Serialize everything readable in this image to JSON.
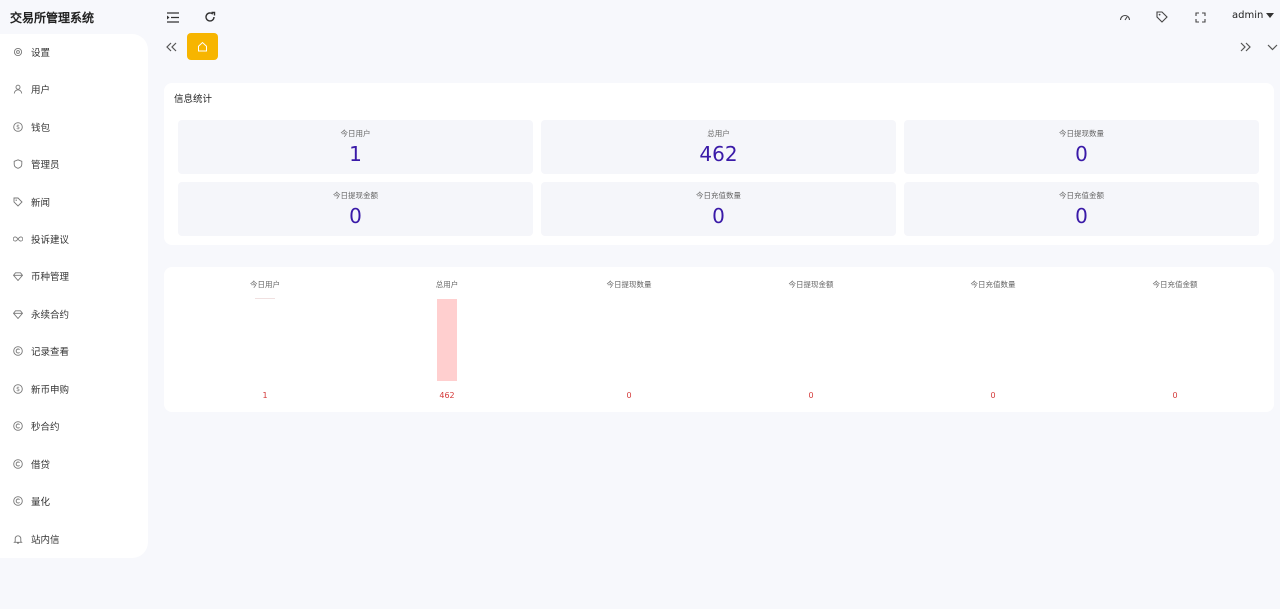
{
  "app": {
    "title": "交易所管理系统"
  },
  "header": {
    "menu_icon": "menu-fold-icon",
    "refresh_icon": "refresh-icon",
    "right_icons": [
      "dashboard-gauge-icon",
      "tag-icon",
      "fullscreen-icon"
    ],
    "user": "admin"
  },
  "sidebar": {
    "items": [
      {
        "label": "设置",
        "icon": "gear-icon"
      },
      {
        "label": "用户",
        "icon": "user-icon"
      },
      {
        "label": "钱包",
        "icon": "dollar-circle-icon"
      },
      {
        "label": "管理员",
        "icon": "shield-icon"
      },
      {
        "label": "新闻",
        "icon": "tag-icon"
      },
      {
        "label": "投诉建议",
        "icon": "infinity-icon"
      },
      {
        "label": "币种管理",
        "icon": "gem-icon"
      },
      {
        "label": "永续合约",
        "icon": "gem-icon"
      },
      {
        "label": "记录查看",
        "icon": "copyright-circle-icon"
      },
      {
        "label": "新币申购",
        "icon": "dollar-circle-icon"
      },
      {
        "label": "秒合约",
        "icon": "copyright-circle-icon"
      },
      {
        "label": "借贷",
        "icon": "copyright-circle-icon"
      },
      {
        "label": "量化",
        "icon": "copyright-circle-icon"
      },
      {
        "label": "站内信",
        "icon": "bell-icon"
      }
    ]
  },
  "tabs": {
    "home_icon": "home-icon"
  },
  "stats": {
    "title": "信息统计",
    "items": [
      {
        "label": "今日用户",
        "value": "1"
      },
      {
        "label": "总用户",
        "value": "462"
      },
      {
        "label": "今日提现数量",
        "value": "0"
      },
      {
        "label": "今日提现金额",
        "value": "0"
      },
      {
        "label": "今日充值数量",
        "value": "0"
      },
      {
        "label": "今日充值金额",
        "value": "0"
      }
    ]
  },
  "chart_data": {
    "type": "bar",
    "categories": [
      "今日用户",
      "总用户",
      "今日提现数量",
      "今日提现金额",
      "今日充值数量",
      "今日充值金额"
    ],
    "values": [
      1,
      462,
      0,
      0,
      0,
      0
    ],
    "value_labels": [
      "1",
      "462",
      "0",
      "0",
      "0",
      "0"
    ],
    "bar_color": "#ffcfcf",
    "label_color": "#d43a3a"
  },
  "colors": {
    "accent": "#f7b500",
    "value": "#3a1aa8"
  }
}
